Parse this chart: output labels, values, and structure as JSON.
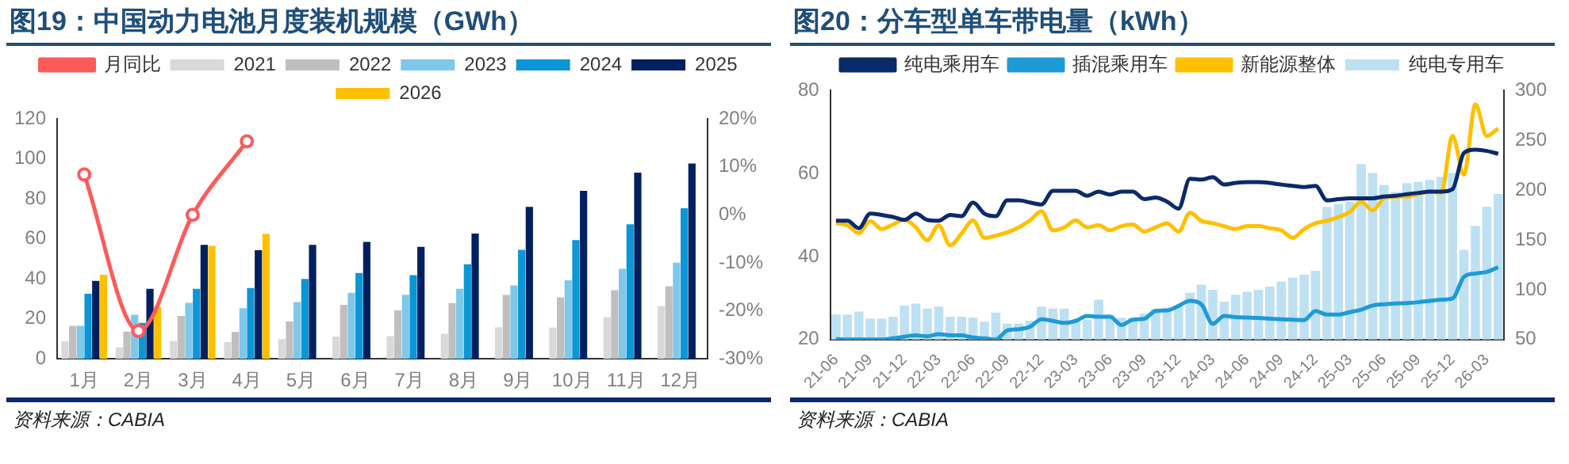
{
  "chart_data": [
    {
      "type": "bar",
      "title": "图19：中国动力电池月度装机规模（GWh）",
      "categories": [
        "1月",
        "2月",
        "3月",
        "4月",
        "5月",
        "6月",
        "7月",
        "8月",
        "9月",
        "10月",
        "11月",
        "12月"
      ],
      "series": [
        {
          "name": "2021",
          "color": "#d9d9d9",
          "values": [
            8.8,
            5.7,
            9,
            8.4,
            9.9,
            11.2,
            11.4,
            12.5,
            15.8,
            15.6,
            20.9,
            26.4
          ]
        },
        {
          "name": "2022",
          "color": "#bfbfbf",
          "values": [
            16.5,
            13.6,
            21.5,
            13.4,
            18.7,
            27,
            24.2,
            27.9,
            31.9,
            30.8,
            34.3,
            36.3
          ]
        },
        {
          "name": "2023",
          "color": "#7ec8ea",
          "values": [
            16.5,
            22,
            28,
            25.3,
            28.4,
            33,
            32,
            35,
            36.7,
            39.3,
            45,
            48.1
          ]
        },
        {
          "name": "2024",
          "color": "#0b96d6",
          "values": [
            32.5,
            18,
            35,
            35.4,
            40,
            42.9,
            41.8,
            47.3,
            54.5,
            59.3,
            67.3,
            75.3
          ]
        },
        {
          "name": "2025",
          "color": "#002060",
          "values": [
            39,
            35,
            57,
            54.3,
            57,
            58.5,
            56,
            62.6,
            76,
            84,
            93.1,
            97.6
          ]
        },
        {
          "name": "2026",
          "color": "#ffc000",
          "values": [
            42,
            26,
            56.5,
            62.4,
            null,
            null,
            null,
            null,
            null,
            null,
            null,
            null
          ]
        },
        {
          "name": "月同比",
          "color": "#ff5a5a",
          "type": "line",
          "axis": "y2",
          "marker": "circle",
          "values": [
            8.4,
            -24.2,
            0,
            15.3,
            null,
            null,
            null,
            null,
            null,
            null,
            null,
            null
          ]
        }
      ],
      "ylim": [
        0,
        120
      ],
      "yticks": [
        0,
        20,
        40,
        60,
        80,
        100,
        120
      ],
      "y2lim": [
        -30,
        20
      ],
      "y2ticks": [
        {
          "value": -30,
          "label": "-30%"
        },
        {
          "value": -20,
          "label": "-20%"
        },
        {
          "value": -10,
          "label": "-10%"
        },
        {
          "value": 0,
          "label": "0%"
        },
        {
          "value": 10,
          "label": "10%"
        },
        {
          "value": 20,
          "label": "20%"
        }
      ],
      "grid": false,
      "legend": "top",
      "annotations": [
        "资料来源：CABIA"
      ]
    },
    {
      "type": "line",
      "title": "图20：分车型单车带电量（kWh）",
      "categories": [
        "21-06",
        null,
        null,
        "21-09",
        null,
        null,
        "21-12",
        null,
        null,
        "22-03",
        null,
        null,
        "22-06",
        null,
        null,
        "22-09",
        null,
        null,
        "22-12",
        null,
        null,
        "23-03",
        null,
        null,
        "23-06",
        null,
        null,
        "23-09",
        null,
        null,
        "23-12",
        null,
        null,
        "24-03",
        null,
        null,
        "24-06",
        null,
        null,
        "24-09",
        null,
        null,
        "24-12",
        null,
        null,
        "25-03",
        null,
        null,
        "25-06",
        null,
        null,
        "25-09",
        null,
        null,
        "25-12",
        null,
        null,
        "26-03",
        null
      ],
      "series": [
        {
          "name": "纯电专用车",
          "color": "#bde0f3",
          "type": "bar",
          "axis": "y2",
          "values": [
            75,
            75,
            78,
            71,
            71,
            73,
            84,
            86,
            81,
            83,
            73,
            73,
            72,
            68,
            77,
            66,
            66,
            69,
            83,
            81,
            81,
            69,
            70,
            90,
            75,
            72,
            72,
            76,
            81,
            82,
            83,
            97,
            105,
            100,
            88,
            95,
            98,
            100,
            103,
            108,
            112,
            115,
            119,
            183,
            186,
            188,
            226,
            217,
            205,
            198,
            207,
            208,
            210,
            213,
            217,
            140,
            164,
            183,
            196
          ]
        },
        {
          "name": "纯电乘用车",
          "color": "#0b2a6b",
          "values": [
            48.6,
            48.6,
            46.8,
            50.3,
            50.0,
            49.5,
            48.8,
            50.3,
            48.8,
            48.6,
            50.0,
            49.7,
            53.0,
            50.3,
            49.7,
            53.5,
            53.5,
            53.0,
            52.5,
            55.8,
            55.8,
            55.8,
            54.6,
            55.6,
            54.9,
            55.6,
            55.6,
            53.8,
            54.2,
            53.2,
            51.5,
            58.7,
            58.5,
            59.1,
            57.3,
            57.7,
            57.9,
            57.9,
            57.7,
            57.3,
            57.0,
            56.7,
            57.0,
            53.5,
            53.8,
            54.0,
            54.0,
            54.0,
            54.4,
            54.6,
            55.0,
            55.3,
            55.6,
            55.6,
            56.2,
            64.9,
            65.7,
            65.4,
            64.7
          ]
        },
        {
          "name": "插混乘用车",
          "color": "#1e9bd7",
          "values": [
            20.1,
            20.0,
            20.0,
            20.0,
            20.0,
            20.3,
            20.7,
            21.0,
            20.8,
            21.3,
            21.0,
            21.0,
            20.5,
            20.3,
            20.0,
            22.2,
            22.5,
            23.1,
            24.9,
            24.5,
            24.0,
            24.5,
            25.7,
            25.5,
            25.5,
            23.5,
            24.8,
            25.0,
            26.9,
            27.0,
            28.1,
            29.3,
            28.5,
            23.8,
            25.7,
            25.4,
            25.3,
            25.2,
            25.0,
            24.9,
            24.8,
            24.7,
            26.9,
            26.0,
            26.0,
            26.6,
            27.2,
            28.2,
            28.5,
            28.7,
            28.8,
            29.0,
            29.3,
            29.6,
            29.9,
            35.1,
            35.9,
            36.3,
            37.4
          ]
        },
        {
          "name": "新能源整体",
          "color": "#ffc000",
          "values": [
            48.0,
            47.5,
            45.6,
            48.5,
            46.6,
            47.7,
            48.9,
            47.0,
            43.9,
            47.5,
            42.7,
            45.5,
            48.7,
            44.5,
            45.0,
            45.8,
            47.0,
            48.7,
            50.9,
            46.3,
            47.0,
            48.7,
            47.0,
            47.5,
            46.3,
            47.3,
            47.7,
            46.0,
            47.0,
            48.0,
            46.0,
            50.5,
            48.6,
            48.0,
            47.3,
            46.6,
            47.3,
            47.3,
            46.8,
            46.3,
            44.5,
            46.6,
            48.0,
            48.6,
            49.5,
            50.7,
            53.2,
            51.1,
            54.0,
            54.4,
            54.4,
            55.0,
            55.6,
            55.3,
            69.0,
            59.7,
            76.6,
            69.0,
            70.8
          ]
        }
      ],
      "ylim": [
        20,
        80
      ],
      "yticks": [
        20,
        40,
        60,
        80
      ],
      "y2lim": [
        50,
        300
      ],
      "y2ticks": [
        50,
        100,
        150,
        200,
        250,
        300
      ],
      "grid": false,
      "legend": "top",
      "marker": "none",
      "line_style": "solid",
      "annotations": [
        "资料来源：CABIA"
      ]
    }
  ]
}
